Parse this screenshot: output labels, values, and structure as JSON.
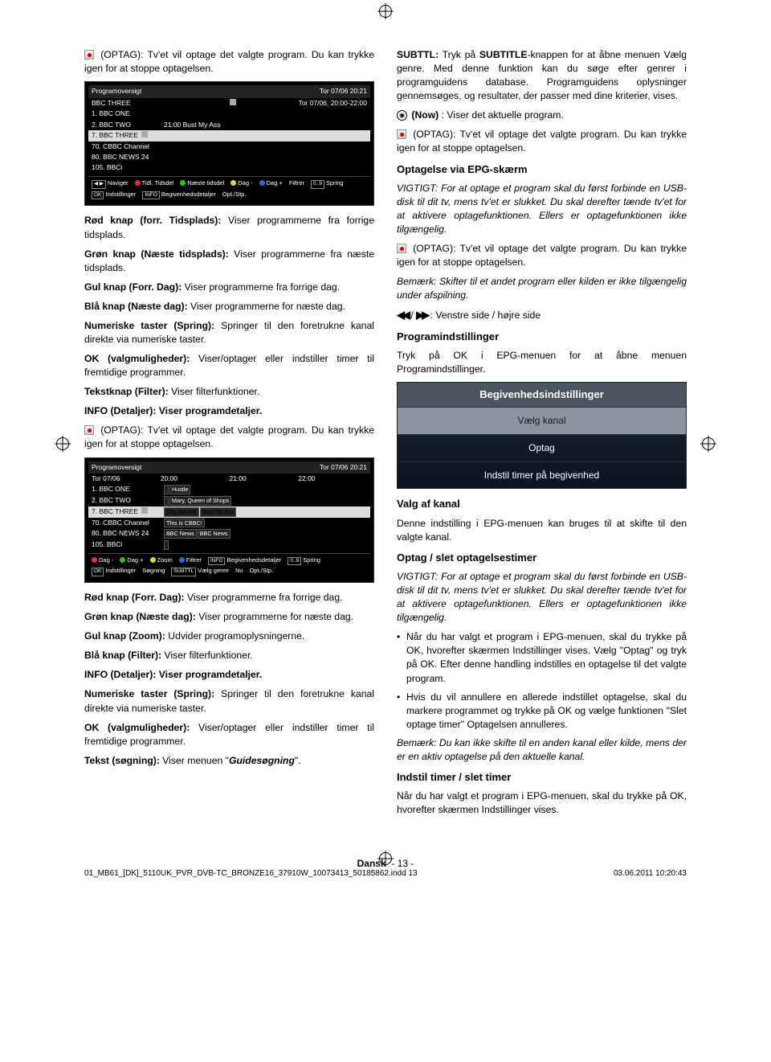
{
  "regmarks": true,
  "left": {
    "p1_prefix": "(OPTAG): Tv'et vil optage det valgte program. Du kan trykke igen for at stoppe optagelsen.",
    "shot1": {
      "title": "Programoversigt",
      "datetime": "Tor 07/06 20:21",
      "channel_hdr": "BBC THREE",
      "timespan": "Tor 07/06, 20:00-22:00",
      "rows": [
        {
          "no": "1.",
          "name": "BBC ONE"
        },
        {
          "no": "2.",
          "name": "BBC TWO",
          "right": "21:00 Bust My Ass"
        },
        {
          "no": "7.",
          "name": "BBC THREE",
          "selected": true
        },
        {
          "no": "70.",
          "name": "CBBC Channel"
        },
        {
          "no": "80.",
          "name": "BBC NEWS 24"
        },
        {
          "no": "105.",
          "name": "BBCi"
        }
      ],
      "bottom": [
        {
          "k": "◀ ▶",
          "t": "Naviger"
        },
        {
          "cls": "dr",
          "t": "Tidl. Tidsdel"
        },
        {
          "cls": "dg",
          "t": "Næste tidsdel"
        },
        {
          "cls": "dy",
          "t": "Dag -"
        },
        {
          "cls": "db",
          "t": "Dag +"
        },
        {
          "k": "",
          "t": "Filtrer"
        },
        {
          "k": "0..9",
          "t": "Spring"
        },
        {
          "k": "OK",
          "t": "Indstillinger"
        },
        {
          "k": "INFO",
          "t": "Begivenhedsdetaljer"
        },
        {
          "k": "",
          "t": "Opt./Stp."
        }
      ]
    },
    "para_a": [
      {
        "b": "Rød knap (forr. Tidsplads):",
        "t": " Viser programmerne fra forrige tidsplads."
      },
      {
        "b": "Grøn knap (Næste tidsplads):",
        "t": " Viser programmerne fra næste tidsplads."
      },
      {
        "b": "Gul knap (Forr. Dag):",
        "t": " Viser programmerne fra forrige dag."
      },
      {
        "b": "Blå knap (Næste dag):",
        "t": " Viser programmerne for næste dag."
      },
      {
        "b": "Numeriske taster (Spring):",
        "t": " Springer til den foretrukne kanal direkte via numeriske taster."
      },
      {
        "b": "OK (valgmuligheder):",
        "t": " Viser/optager eller indstiller timer til fremtidige programmer."
      },
      {
        "b": "Tekstknap (Filter):",
        "t": " Viser filterfunktioner."
      },
      {
        "b": "INFO (Detaljer): Viser programdetaljer.",
        "t": ""
      }
    ],
    "p_rec2": "(OPTAG): Tv'et vil optage det valgte program. Du kan trykke igen for at stoppe optagelsen.",
    "shot2": {
      "title": "Programoversigt",
      "datetime": "Tor 07/06 20:21",
      "date": "Tor 07/06",
      "times": [
        "20:00",
        "21:00",
        "22:00"
      ],
      "rows": [
        {
          "no": "1.",
          "name": "BBC ONE",
          "blocks": [
            "",
            "Hustle"
          ]
        },
        {
          "no": "2.",
          "name": "BBC TWO",
          "blocks": [
            "",
            "Mary, Queen of Shops"
          ]
        },
        {
          "no": "7.",
          "name": "BBC THREE",
          "selected": true,
          "blocks": [
            "Dog Borstal",
            "Bust My Ass"
          ]
        },
        {
          "no": "70.",
          "name": "CBBC Channel",
          "blocks": [
            "This is CBBC!"
          ]
        },
        {
          "no": "80.",
          "name": "BBC NEWS 24",
          "blocks": [
            "BBC News",
            "BBC News"
          ]
        },
        {
          "no": "105.",
          "name": "BBCi",
          "blocks": [
            ""
          ]
        }
      ],
      "bottom": [
        {
          "cls": "dr",
          "t": "Dag -"
        },
        {
          "cls": "dg",
          "t": "Dag +"
        },
        {
          "cls": "dy",
          "t": "Zoom"
        },
        {
          "cls": "db",
          "t": "Filtrer"
        },
        {
          "k": "INFO",
          "t": "Begivenhedsdetaljer"
        },
        {
          "k": "0..9",
          "t": "Spring"
        },
        {
          "k": "OK",
          "t": "Indstillinger"
        },
        {
          "k": "",
          "t": "Søgning"
        },
        {
          "k": "SUBTTL",
          "t": "Vælg genre"
        },
        {
          "k": "",
          "t": "Nu"
        },
        {
          "k": "",
          "t": "Opt./Stp."
        }
      ]
    },
    "para_b": [
      {
        "b": "Rød knap (Forr. Dag):",
        "t": " Viser programmerne fra forrige dag."
      },
      {
        "b": "Grøn knap (Næste dag):",
        "t": " Viser programmerne for næste dag."
      },
      {
        "b": "Gul knap (Zoom):",
        "t": " Udvider programoplysningerne."
      },
      {
        "b": "Blå knap (Filter):",
        "t": " Viser filterfunktioner."
      },
      {
        "b": "INFO (Detaljer): Viser programdetaljer.",
        "t": ""
      },
      {
        "b": "Numeriske taster (Spring):",
        "t": " Springer til den foretrukne kanal direkte via numeriske taster."
      },
      {
        "b": "OK (valgmuligheder):",
        "t": " Viser/optager eller indstiller timer til fremtidige programmer."
      },
      {
        "b": "Tekst (søgning):",
        "t": " Viser menuen \""
      }
    ],
    "guides": "Guidesøgning",
    "guides_after": "\"."
  },
  "right": {
    "p1": {
      "b": "SUBTTL:",
      "mid": " Tryk på ",
      "b2": "SUBTITLE",
      "t": "-knappen for at åbne menuen Vælg genre. Med denne funktion kan du søge efter genrer i programguidens database. Programguidens oplysninger gennemsøges, og resultater, der passer med dine kriterier, vises."
    },
    "now": " : Viser det aktuelle program.",
    "now_b": "(Now)",
    "p_rec": "(OPTAG): Tv'et vil optage det valgte program. Du kan trykke igen for at stoppe optagelsen.",
    "h1": "Optagelse via EPG-skærm",
    "p2": "VIGTIGT: For at optage et program skal du først forbinde en USB-disk til dit tv, mens tv'et er slukket. Du skal derefter tænde tv'et for at aktivere optagefunktionen. Ellers er optagefunktionen ikke tilgængelig.",
    "p3": "(OPTAG): Tv'et vil optage det valgte program. Du kan trykke igen for at stoppe optagelsen.",
    "p4": "Bemærk: Skifter til et andet program eller kilden er ikke tilgængelig under afspilning.",
    "p5_mid": " : Venstre side / højre side",
    "h2": "Programindstillinger",
    "p6": "Tryk på OK i EPG-menuen for at åbne menuen Programindstillinger.",
    "menu": {
      "title": "Begivenhedsindstillinger",
      "items": [
        "Vælg kanal",
        "Optag",
        "Indstil timer på begivenhed"
      ],
      "selected": 0
    },
    "h3": "Valg af kanal",
    "p7": "Denne indstilling i EPG-menuen kan bruges til at skifte til den valgte kanal.",
    "h4": "Optag / slet optagelsestimer",
    "p8": "VIGTIGT: For at optage et program skal du først forbinde en USB-disk til dit tv, mens tv'et er slukket. Du skal derefter tænde tv'et for at aktivere optagefunktionen. Ellers er optagefunktionen ikke tilgængelig.",
    "bul": [
      "Når du har valgt et program i EPG-menuen, skal du trykke på OK, hvorefter skærmen Indstillinger vises. Vælg \"Optag\" og tryk på OK. Efter denne handling indstilles en optagelse til det valgte program.",
      "Hvis du vil annullere en allerede indstillet optagelse, skal du markere programmet og trykke på OK og vælge funktionen \"Slet optage  timer\" Optagelsen annulleres."
    ],
    "p9": "Bemærk: Du kan ikke skifte til en anden kanal eller kilde, mens der er en aktiv optagelse på den aktuelle kanal.",
    "h5": "Indstil timer / slet timer",
    "p10": "Når du har valgt et program i EPG-menuen, skal du trykke på OK, hvorefter skærmen Indstillinger vises."
  },
  "page_footer": {
    "lang": "Dansk",
    "page": "- 13 -"
  },
  "file_footer": {
    "fname": "01_MB61_[DK]_5110UK_PVR_DVB-TC_BRONZE16_37910W_10073413_50185862.indd   13",
    "date": "03.06.2011   10:20:43"
  }
}
